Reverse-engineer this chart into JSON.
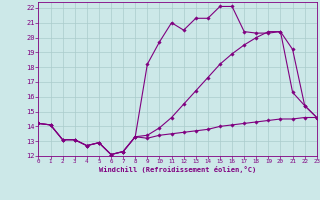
{
  "xlabel": "Windchill (Refroidissement éolien,°C)",
  "bg_color": "#cce8e8",
  "line_color": "#800080",
  "grid_color": "#aacccc",
  "xmin": 0,
  "xmax": 23,
  "ymin": 12,
  "ymax": 22.4,
  "x_ticks": [
    0,
    1,
    2,
    3,
    4,
    5,
    6,
    7,
    8,
    9,
    10,
    11,
    12,
    13,
    14,
    15,
    16,
    17,
    18,
    19,
    20,
    21,
    22,
    23
  ],
  "y_ticks": [
    12,
    13,
    14,
    15,
    16,
    17,
    18,
    19,
    20,
    21,
    22
  ],
  "line1_x": [
    0,
    1,
    2,
    3,
    4,
    5,
    6,
    7,
    8,
    9,
    10,
    11,
    12,
    13,
    14,
    15,
    16,
    17,
    18,
    19,
    20,
    21,
    22,
    23
  ],
  "line1_y": [
    14.2,
    14.1,
    13.1,
    13.1,
    12.7,
    12.9,
    12.1,
    12.3,
    13.3,
    13.2,
    13.4,
    13.5,
    13.6,
    13.7,
    13.8,
    14.0,
    14.1,
    14.2,
    14.3,
    14.4,
    14.5,
    14.5,
    14.6,
    14.6
  ],
  "line2_x": [
    0,
    1,
    2,
    3,
    4,
    5,
    6,
    7,
    8,
    9,
    10,
    11,
    12,
    13,
    14,
    15,
    16,
    17,
    18,
    19,
    20,
    21,
    22,
    23
  ],
  "line2_y": [
    14.2,
    14.1,
    13.1,
    13.1,
    12.7,
    12.9,
    12.1,
    12.3,
    13.3,
    13.4,
    13.9,
    14.6,
    15.5,
    16.4,
    17.3,
    18.2,
    18.9,
    19.5,
    20.0,
    20.4,
    20.4,
    19.2,
    15.4,
    14.6
  ],
  "line3_x": [
    0,
    1,
    2,
    3,
    4,
    5,
    6,
    7,
    8,
    9,
    10,
    11,
    12,
    13,
    14,
    15,
    16,
    17,
    18,
    19,
    20,
    21,
    22,
    23
  ],
  "line3_y": [
    14.2,
    14.1,
    13.1,
    13.1,
    12.7,
    12.9,
    12.1,
    12.3,
    13.3,
    18.2,
    19.7,
    21.0,
    20.5,
    21.3,
    21.3,
    22.1,
    22.1,
    20.4,
    20.3,
    20.3,
    20.4,
    16.3,
    15.4,
    14.6
  ]
}
